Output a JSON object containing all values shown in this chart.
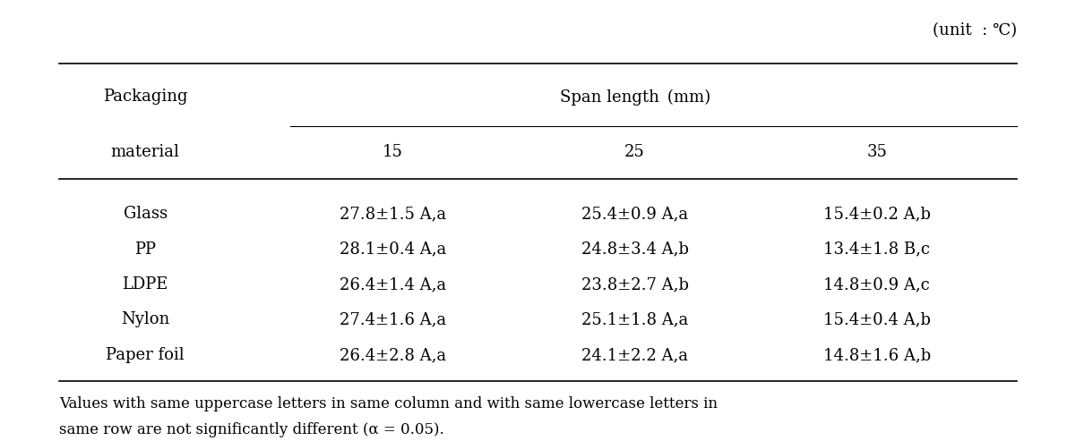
{
  "unit_label": "(unit  : ℃)",
  "col_header_row1": [
    "Packaging",
    "Span length (mm)",
    "",
    ""
  ],
  "col_header_row2": [
    "material",
    "15",
    "25",
    "35"
  ],
  "rows": [
    [
      "Glass",
      "27.8±1.5 A,a",
      "25.4±0.9 A,a",
      "15.4±0.2 A,b"
    ],
    [
      "PP",
      "28.1±0.4 A,a",
      "24.8±3.4 A,b",
      "13.4±1.8 B,c"
    ],
    [
      "LDPE",
      "26.4±1.4 A,a",
      "23.8±2.7 A,b",
      "14.8±0.9 A,c"
    ],
    [
      "Nylon",
      "27.4±1.6 A,a",
      "25.1±1.8 A,a",
      "15.4±0.4 A,b"
    ],
    [
      "Paper foil",
      "26.4±2.8 A,a",
      "24.1±2.2 A,a",
      "14.8±1.6 A,b"
    ]
  ],
  "footnote_line1": "Values with same uppercase letters in same column and with same lowercase letters in",
  "footnote_line2": "same row are not significantly different (α = 0.05).",
  "font_family": "serif",
  "font_size": 13,
  "header_font_size": 13,
  "unit_font_size": 13
}
